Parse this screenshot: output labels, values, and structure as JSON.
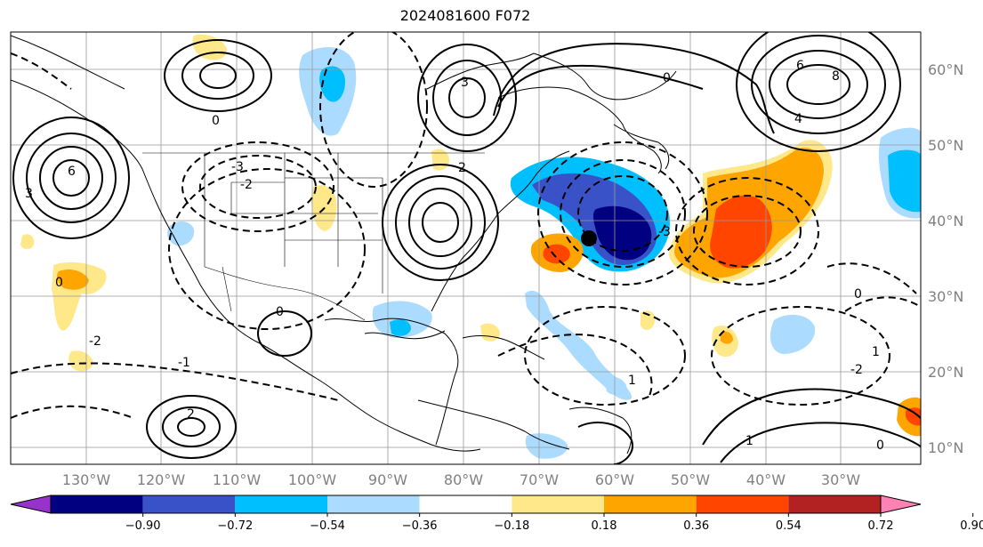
{
  "title": "2024081600 F072",
  "lon_labels": [
    "130°W",
    "120°W",
    "110°W",
    "100°W",
    "90°W",
    "80°W",
    "70°W",
    "60°W",
    "50°W",
    "40°W",
    "30°W"
  ],
  "lat_labels": [
    "60°N",
    "50°N",
    "40°N",
    "30°N",
    "20°N",
    "10°N"
  ],
  "colorbar": {
    "ticks": [
      "−0.90",
      "−0.72",
      "−0.54",
      "−0.36",
      "−0.18",
      "0.18",
      "0.36",
      "0.54",
      "0.72",
      "0.90"
    ],
    "colors": [
      "#9932cc",
      "#000080",
      "#3a52c8",
      "#00bfff",
      "#abdcff",
      "#ffffff",
      "#ffe88a",
      "#ffa500",
      "#ff4500",
      "#b22222",
      "#ff82b4"
    ]
  },
  "contour_labels": [
    "6",
    "3",
    "0",
    "-3",
    "-2",
    "-1",
    "2",
    "4",
    "8",
    "1"
  ],
  "marker": "storm-position"
}
